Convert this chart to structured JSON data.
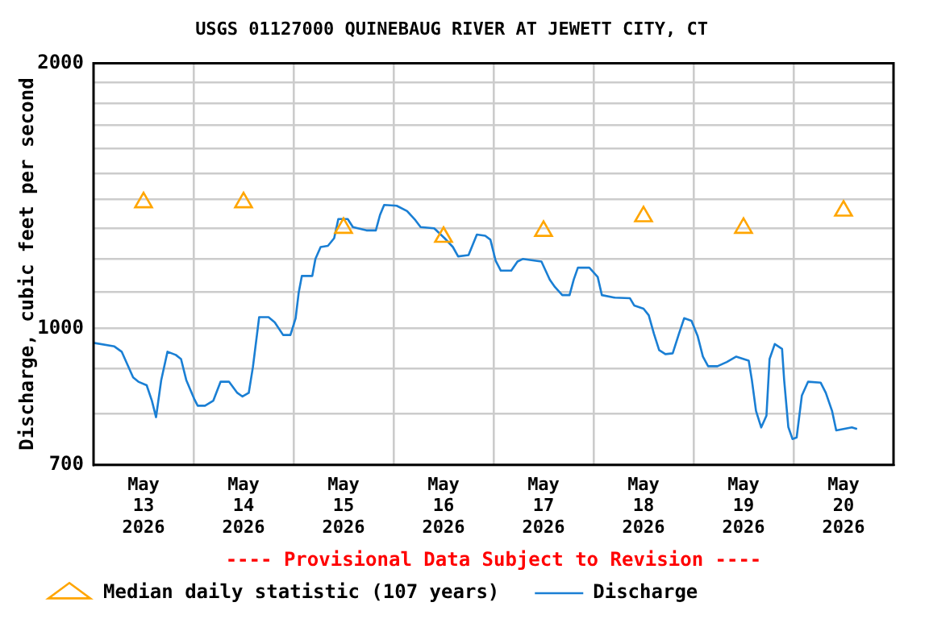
{
  "chart_data": {
    "type": "line",
    "title": "USGS 01127000 QUINEBAUG RIVER AT JEWETT CITY, CT",
    "ylabel": "Discharge, cubic feet per second",
    "log": true,
    "grid": true,
    "legend": "bottom left",
    "annotations": [
      "---- Provisional Data Subject to Revision ----"
    ],
    "xlim": [
      "2026-05-13T00:00",
      "2026-05-21T00:00"
    ],
    "xticks": [
      {
        "value": "2026-05-13T12:00",
        "label": "May\n13\n2026"
      },
      {
        "value": "2026-05-14T00:00",
        "label": null
      },
      {
        "value": "2026-05-14T12:00",
        "label": "May\n14\n2026"
      },
      {
        "value": "2026-05-15T00:00",
        "label": null
      },
      {
        "value": "2026-05-15T12:00",
        "label": "May\n15\n2026"
      },
      {
        "value": "2026-05-16T00:00",
        "label": null
      },
      {
        "value": "2026-05-16T12:00",
        "label": "May\n16\n2026"
      },
      {
        "value": "2026-05-17T00:00",
        "label": null
      },
      {
        "value": "2026-05-17T12:00",
        "label": "May\n17\n2026"
      },
      {
        "value": "2026-05-18T00:00",
        "label": null
      },
      {
        "value": "2026-05-18T12:00",
        "label": "May\n18\n2026"
      },
      {
        "value": "2026-05-19T00:00",
        "label": null
      },
      {
        "value": "2026-05-19T12:00",
        "label": "May\n19\n2026"
      },
      {
        "value": "2026-05-20T00:00",
        "label": null
      },
      {
        "value": "2026-05-20T12:00",
        "label": "May\n20\n2026"
      }
    ],
    "ylim": [
      700,
      2000
    ],
    "yticks": [
      700,
      {
        "value": 800,
        "label": null
      },
      {
        "value": 900,
        "label": null
      },
      1000,
      {
        "value": 1100,
        "label": null
      },
      {
        "value": 1200,
        "label": null
      },
      {
        "value": 1300,
        "label": null
      },
      {
        "value": 1400,
        "label": null
      },
      {
        "value": 1500,
        "label": null
      },
      {
        "value": 1600,
        "label": null
      },
      {
        "value": 1700,
        "label": null
      },
      {
        "value": 1800,
        "label": null
      },
      {
        "value": 1900,
        "label": null
      },
      2000
    ],
    "series": [
      {
        "name": "Median daily statistic (107 years)",
        "type": "scatter",
        "marker": "triangle",
        "color": "#ffa500",
        "x": [
          "2026-05-13T12:00",
          "2026-05-14T12:00",
          "2026-05-15T12:00",
          "2026-05-16T12:00",
          "2026-05-17T12:00",
          "2026-05-18T12:00",
          "2026-05-19T12:00",
          "2026-05-20T12:00"
        ],
        "values": [
          1390,
          1390,
          1300,
          1270,
          1290,
          1340,
          1300,
          1360
        ]
      },
      {
        "name": "Discharge",
        "type": "line",
        "marker": "none",
        "color": "#1a7fd4",
        "x": [
          "2026-05-13T00:00",
          "2026-05-13T05:00",
          "2026-05-13T06:45",
          "2026-05-13T09:30",
          "2026-05-13T10:45",
          "2026-05-13T12:45",
          "2026-05-13T14:00",
          "2026-05-13T15:00",
          "2026-05-13T16:15",
          "2026-05-13T17:45",
          "2026-05-13T19:45",
          "2026-05-13T21:00",
          "2026-05-13T22:15",
          "2026-05-14T00:15",
          "2026-05-14T01:00",
          "2026-05-14T02:45",
          "2026-05-14T04:45",
          "2026-05-14T06:30",
          "2026-05-14T08:30",
          "2026-05-14T10:30",
          "2026-05-14T11:45",
          "2026-05-14T13:15",
          "2026-05-14T14:15",
          "2026-05-14T15:45",
          "2026-05-14T18:00",
          "2026-05-14T19:30",
          "2026-05-14T21:30",
          "2026-05-14T23:15",
          "2026-05-15T00:30",
          "2026-05-15T01:15",
          "2026-05-15T02:00",
          "2026-05-15T04:30",
          "2026-05-15T05:15",
          "2026-05-15T06:30",
          "2026-05-15T08:15",
          "2026-05-15T09:45",
          "2026-05-15T10:45",
          "2026-05-15T13:00",
          "2026-05-15T14:15",
          "2026-05-15T17:30",
          "2026-05-15T19:45",
          "2026-05-15T20:45",
          "2026-05-15T21:45",
          "2026-05-16T00:45",
          "2026-05-16T03:15",
          "2026-05-16T05:15",
          "2026-05-16T06:30",
          "2026-05-16T09:45",
          "2026-05-16T12:15",
          "2026-05-16T14:15",
          "2026-05-16T15:30",
          "2026-05-16T18:00",
          "2026-05-16T20:00",
          "2026-05-16T22:00",
          "2026-05-16T23:15",
          "2026-05-17T00:30",
          "2026-05-17T01:45",
          "2026-05-17T04:15",
          "2026-05-17T05:45",
          "2026-05-17T07:00",
          "2026-05-17T11:30",
          "2026-05-17T13:30",
          "2026-05-17T14:45",
          "2026-05-17T16:30",
          "2026-05-17T18:15",
          "2026-05-17T19:15",
          "2026-05-17T20:15",
          "2026-05-17T23:00",
          "2026-05-18T01:00",
          "2026-05-18T02:00",
          "2026-05-18T05:00",
          "2026-05-18T08:45",
          "2026-05-18T09:45",
          "2026-05-18T12:00",
          "2026-05-18T13:15",
          "2026-05-18T14:30",
          "2026-05-18T15:45",
          "2026-05-18T17:15",
          "2026-05-18T19:00",
          "2026-05-18T20:30",
          "2026-05-18T21:45",
          "2026-05-18T23:30",
          "2026-05-19T01:00",
          "2026-05-19T02:15",
          "2026-05-19T03:30",
          "2026-05-19T05:45",
          "2026-05-19T08:00",
          "2026-05-19T10:15",
          "2026-05-19T13:15",
          "2026-05-19T14:00",
          "2026-05-19T15:00",
          "2026-05-19T16:15",
          "2026-05-19T17:30",
          "2026-05-19T18:15",
          "2026-05-19T19:30",
          "2026-05-19T21:15",
          "2026-05-19T21:45",
          "2026-05-19T22:45",
          "2026-05-19T23:45",
          "2026-05-20T00:45",
          "2026-05-20T02:00",
          "2026-05-20T03:30",
          "2026-05-20T06:30",
          "2026-05-20T07:45",
          "2026-05-20T09:15",
          "2026-05-20T10:15",
          "2026-05-20T14:00",
          "2026-05-20T15:15"
        ],
        "values": [
          963,
          954,
          941,
          880,
          870,
          862,
          828,
          793,
          874,
          941,
          933,
          923,
          874,
          830,
          817,
          817,
          828,
          870,
          870,
          845,
          837,
          845,
          904,
          1030,
          1030,
          1016,
          983,
          983,
          1027,
          1099,
          1147,
          1147,
          1199,
          1237,
          1241,
          1266,
          1331,
          1331,
          1303,
          1292,
          1292,
          1345,
          1381,
          1378,
          1359,
          1327,
          1303,
          1299,
          1266,
          1237,
          1207,
          1211,
          1278,
          1274,
          1261,
          1194,
          1163,
          1163,
          1191,
          1199,
          1191,
          1136,
          1114,
          1091,
          1091,
          1136,
          1172,
          1172,
          1144,
          1091,
          1084,
          1082,
          1062,
          1053,
          1035,
          986,
          945,
          935,
          937,
          986,
          1027,
          1020,
          980,
          929,
          906,
          906,
          916,
          929,
          919,
          874,
          806,
          772,
          796,
          923,
          960,
          948,
          874,
          773,
          749,
          752,
          839,
          870,
          868,
          845,
          806,
          766,
          772,
          769
        ]
      }
    ]
  }
}
